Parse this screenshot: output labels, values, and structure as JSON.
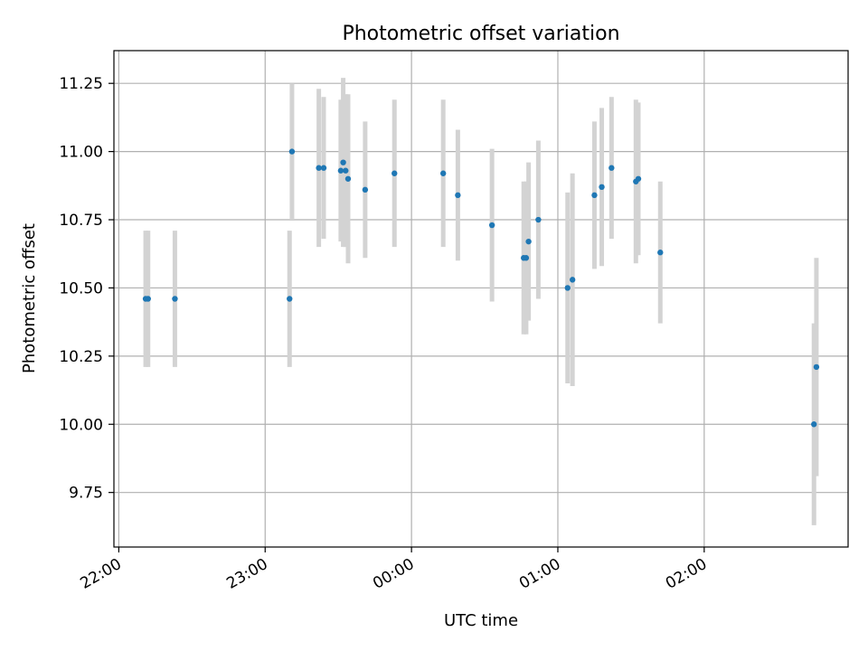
{
  "chart_data": {
    "type": "scatter",
    "title": "Photometric offset variation",
    "xlabel": "UTC time",
    "ylabel": "Photometric offset",
    "x_ticks": [
      "22:00",
      "23:00",
      "00:00",
      "01:00",
      "02:00"
    ],
    "y_ticks": [
      "9.75",
      "10.00",
      "10.25",
      "10.50",
      "10.75",
      "11.00",
      "11.25"
    ],
    "y_tick_values": [
      9.75,
      10.0,
      10.25,
      10.5,
      10.75,
      11.0,
      11.25
    ],
    "x_tick_times": [
      "22:00",
      "23:00",
      "00:00",
      "01:00",
      "02:00"
    ],
    "xlim": [
      "21:58",
      "02:59"
    ],
    "ylim": [
      9.55,
      11.37
    ],
    "grid": true,
    "point_color": "#1f77b4",
    "errorbar_color": "#d3d3d3",
    "points": [
      {
        "t": "22:11",
        "y": 10.46,
        "err": 0.25
      },
      {
        "t": "22:12",
        "y": 10.46,
        "err": 0.25
      },
      {
        "t": "22:23",
        "y": 10.46,
        "err": 0.25
      },
      {
        "t": "23:10",
        "y": 10.46,
        "err": 0.25
      },
      {
        "t": "23:11",
        "y": 11.0,
        "err": 0.25
      },
      {
        "t": "23:22",
        "y": 10.94,
        "err": 0.29
      },
      {
        "t": "23:24",
        "y": 10.94,
        "err": 0.26
      },
      {
        "t": "23:31",
        "y": 10.93,
        "err": 0.26
      },
      {
        "t": "23:32",
        "y": 10.96,
        "err": 0.31
      },
      {
        "t": "23:33",
        "y": 10.93,
        "err": 0.28
      },
      {
        "t": "23:34",
        "y": 10.9,
        "err": 0.31
      },
      {
        "t": "23:41",
        "y": 10.86,
        "err": 0.25
      },
      {
        "t": "23:53",
        "y": 10.92,
        "err": 0.27
      },
      {
        "t": "00:13",
        "y": 10.92,
        "err": 0.27
      },
      {
        "t": "00:19",
        "y": 10.84,
        "err": 0.24
      },
      {
        "t": "00:33",
        "y": 10.73,
        "err": 0.28
      },
      {
        "t": "00:46",
        "y": 10.61,
        "err": 0.28
      },
      {
        "t": "00:47",
        "y": 10.61,
        "err": 0.28
      },
      {
        "t": "00:48",
        "y": 10.67,
        "err": 0.29
      },
      {
        "t": "00:52",
        "y": 10.75,
        "err": 0.29
      },
      {
        "t": "01:04",
        "y": 10.5,
        "err": 0.35
      },
      {
        "t": "01:06",
        "y": 10.53,
        "err": 0.39
      },
      {
        "t": "01:15",
        "y": 10.84,
        "err": 0.27
      },
      {
        "t": "01:18",
        "y": 10.87,
        "err": 0.29
      },
      {
        "t": "01:22",
        "y": 10.94,
        "err": 0.26
      },
      {
        "t": "01:32",
        "y": 10.89,
        "err": 0.3
      },
      {
        "t": "01:33",
        "y": 10.9,
        "err": 0.28
      },
      {
        "t": "01:42",
        "y": 10.63,
        "err": 0.26
      },
      {
        "t": "02:45",
        "y": 10.0,
        "err": 0.37
      },
      {
        "t": "02:46",
        "y": 10.21,
        "err": 0.4
      }
    ]
  }
}
